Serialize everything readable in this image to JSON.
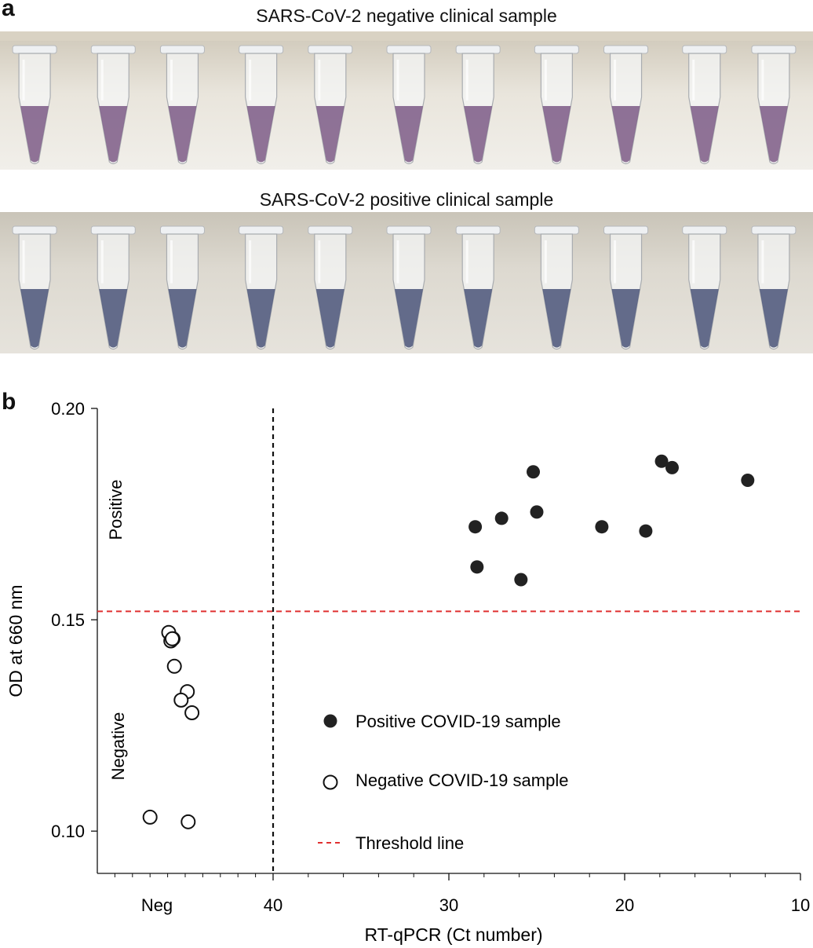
{
  "panel_a": {
    "letter": "a",
    "negative_title": "SARS-CoV-2 negative clinical sample",
    "positive_title": "SARS-CoV-2 positive clinical sample",
    "negative_tube_color": "#7d5a86",
    "positive_tube_color": "#4a5478",
    "negative_tube_count": 11,
    "positive_tube_count": 11
  },
  "panel_b": {
    "letter": "b"
  },
  "chart_data": {
    "type": "scatter",
    "xlabel": "RT-qPCR (Ct number)",
    "ylabel": "OD at 660 nm",
    "x_reversed": true,
    "xlim": [
      10,
      40
    ],
    "x_ticks": [
      40,
      30,
      20,
      10
    ],
    "x_extra_tick_label": "Neg",
    "ylim": [
      0.09,
      0.2
    ],
    "y_ticks": [
      "0.10",
      "0.15",
      "0.20"
    ],
    "region_labels": {
      "upper": "Positive",
      "lower": "Negative"
    },
    "threshold": {
      "y": 0.152,
      "color": "#e03030"
    },
    "cutoff_ct": 40,
    "series": [
      {
        "name": "Positive COVID-19 sample",
        "marker": "filled",
        "points": [
          {
            "x": 28.5,
            "y": 0.172
          },
          {
            "x": 28.4,
            "y": 0.1625
          },
          {
            "x": 27.0,
            "y": 0.174
          },
          {
            "x": 25.2,
            "y": 0.185
          },
          {
            "x": 25.0,
            "y": 0.1755
          },
          {
            "x": 25.9,
            "y": 0.1595
          },
          {
            "x": 21.3,
            "y": 0.172
          },
          {
            "x": 18.8,
            "y": 0.171
          },
          {
            "x": 17.9,
            "y": 0.1875
          },
          {
            "x": 17.3,
            "y": 0.186
          },
          {
            "x": 13.0,
            "y": 0.183
          }
        ]
      },
      {
        "name": "Negative COVID-19 sample",
        "marker": "open",
        "neg_points": [
          {
            "u": 0.27,
            "y": 0.147
          },
          {
            "u": 0.297,
            "y": 0.145
          },
          {
            "u": 0.342,
            "y": 0.139
          },
          {
            "u": 0.325,
            "y": 0.1455
          },
          {
            "u": 0.507,
            "y": 0.133
          },
          {
            "u": 0.428,
            "y": 0.131
          },
          {
            "u": 0.566,
            "y": 0.128
          },
          {
            "u": 0.315,
            "y": 0.1455
          },
          {
            "u": 0.032,
            "y": 0.1033
          },
          {
            "u": 0.518,
            "y": 0.1022
          }
        ]
      }
    ],
    "legend": {
      "placement": "lower-middle",
      "entries": [
        {
          "label": "Positive COVID-19 sample",
          "marker": "filled"
        },
        {
          "label": "Negative COVID-19 sample",
          "marker": "open"
        },
        {
          "label": "Threshold line",
          "marker": "dashed-red"
        }
      ]
    }
  }
}
